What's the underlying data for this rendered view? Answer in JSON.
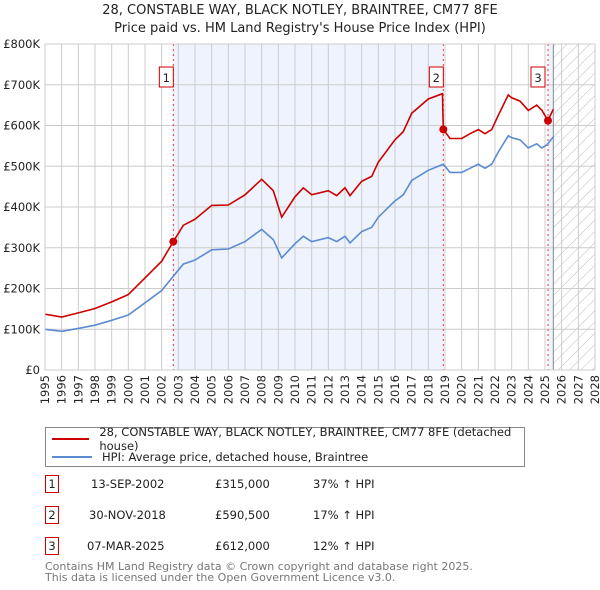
{
  "title": "28, CONSTABLE WAY, BLACK NOTLEY, BRAINTREE, CM77 8FE",
  "subtitle": "Price paid vs. HM Land Registry's House Price Index (HPI)",
  "chart_data": {
    "type": "line",
    "xlim": [
      1995,
      2028
    ],
    "ylim": [
      0,
      800000
    ],
    "x_ticks": [
      "1995",
      "1996",
      "1997",
      "1998",
      "1999",
      "2000",
      "2001",
      "2002",
      "2003",
      "2004",
      "2005",
      "2006",
      "2007",
      "2008",
      "2009",
      "2010",
      "2011",
      "2012",
      "2013",
      "2014",
      "2015",
      "2016",
      "2017",
      "2018",
      "2019",
      "2020",
      "2021",
      "2022",
      "2023",
      "2024",
      "2025",
      "2026",
      "2027",
      "2028"
    ],
    "y_ticks": [
      {
        "v": 0,
        "label": "£0"
      },
      {
        "v": 100000,
        "label": "£100K"
      },
      {
        "v": 200000,
        "label": "£200K"
      },
      {
        "v": 300000,
        "label": "£300K"
      },
      {
        "v": 400000,
        "label": "£400K"
      },
      {
        "v": 500000,
        "label": "£500K"
      },
      {
        "v": 600000,
        "label": "£600K"
      },
      {
        "v": 700000,
        "label": "£700K"
      },
      {
        "v": 800000,
        "label": "£800K"
      }
    ],
    "grid": true,
    "shaded_periods": [
      [
        2002.7,
        2018.9
      ],
      [
        2025.18,
        2025.5
      ]
    ],
    "forecast_hatch_from": 2025.5,
    "series": [
      {
        "name": "28, CONSTABLE WAY, BLACK NOTLEY, BRAINTREE, CM77 8FE (detached house)",
        "color": "#cc0000",
        "x": [
          1995,
          1996,
          1997,
          1998,
          1999,
          2000,
          2001,
          2002,
          2002.7,
          2003.3,
          2004,
          2005,
          2006,
          2007,
          2008,
          2008.7,
          2009.2,
          2010,
          2010.5,
          2011,
          2012,
          2012.5,
          2013,
          2013.3,
          2014,
          2014.6,
          2015,
          2016,
          2016.5,
          2017,
          2018,
          2018.85,
          2018.9,
          2019.3,
          2020,
          2020.5,
          2021,
          2021.4,
          2021.8,
          2022.2,
          2022.8,
          2023,
          2023.5,
          2024,
          2024.5,
          2024.8,
          2025.18,
          2025.5
        ],
        "y": [
          137000,
          130000,
          140000,
          151000,
          167000,
          185000,
          226000,
          267000,
          315000,
          355000,
          370000,
          404000,
          405000,
          430000,
          468000,
          440000,
          375000,
          425000,
          447000,
          430000,
          440000,
          428000,
          447000,
          428000,
          463000,
          475000,
          510000,
          565000,
          585000,
          630000,
          665000,
          678000,
          590500,
          568000,
          568000,
          580000,
          590000,
          580000,
          590000,
          625000,
          675000,
          668000,
          660000,
          637000,
          650000,
          638000,
          612000,
          640000
        ]
      },
      {
        "name": "HPI: Average price, detached house, Braintree",
        "color": "#5b8bd0",
        "x": [
          1995,
          1996,
          1997,
          1998,
          1999,
          2000,
          2001,
          2002,
          2002.7,
          2003.3,
          2004,
          2005,
          2006,
          2007,
          2008,
          2008.7,
          2009.2,
          2010,
          2010.5,
          2011,
          2012,
          2012.5,
          2013,
          2013.3,
          2014,
          2014.6,
          2015,
          2016,
          2016.5,
          2017,
          2018,
          2018.9,
          2019.3,
          2020,
          2020.5,
          2021,
          2021.4,
          2021.8,
          2022.2,
          2022.8,
          2023,
          2023.5,
          2024,
          2024.5,
          2024.8,
          2025.1,
          2025.5
        ],
        "y": [
          100000,
          95000,
          102000,
          110000,
          122000,
          135000,
          165000,
          195000,
          230000,
          260000,
          270000,
          295000,
          297000,
          315000,
          345000,
          320000,
          275000,
          310000,
          328000,
          315000,
          325000,
          315000,
          328000,
          312000,
          340000,
          350000,
          375000,
          415000,
          430000,
          465000,
          490000,
          505000,
          485000,
          485000,
          495000,
          505000,
          495000,
          505000,
          535000,
          575000,
          570000,
          565000,
          545000,
          555000,
          545000,
          552000,
          572000
        ]
      }
    ],
    "sales": [
      {
        "label": "1",
        "x": 2002.7,
        "y": 315000
      },
      {
        "label": "2",
        "x": 2018.9,
        "y": 590500
      },
      {
        "label": "3",
        "x": 2025.18,
        "y": 612000
      }
    ]
  },
  "legend": {
    "property": "28, CONSTABLE WAY, BLACK NOTLEY, BRAINTREE, CM77 8FE (detached house)",
    "hpi": "HPI: Average price, detached house, Braintree"
  },
  "transactions": [
    {
      "num": "1",
      "date": "13-SEP-2002",
      "price": "£315,000",
      "hpi": "37% ↑ HPI"
    },
    {
      "num": "2",
      "date": "30-NOV-2018",
      "price": "£590,500",
      "hpi": "17% ↑ HPI"
    },
    {
      "num": "3",
      "date": "07-MAR-2025",
      "price": "£612,000",
      "hpi": "12% ↑ HPI"
    }
  ],
  "footer": {
    "line1": "Contains HM Land Registry data © Crown copyright and database right 2025.",
    "line2": "This data is licensed under the Open Government Licence v3.0."
  }
}
